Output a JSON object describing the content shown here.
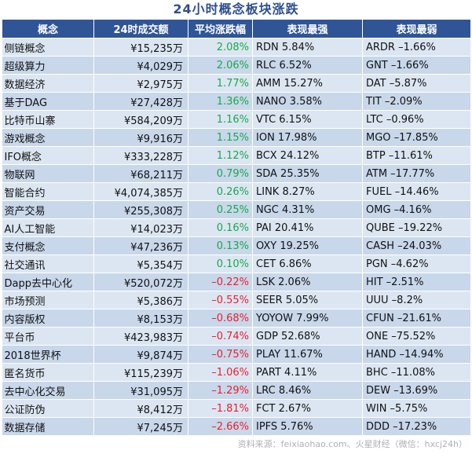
{
  "title": "24小时概念板块涨跌",
  "headers": [
    "概念",
    "24时成交额",
    "平均涨跌幅",
    "表现最强",
    "表现最弱"
  ],
  "colors": {
    "header_bg": "#2f5597",
    "title": "#2e4f8e",
    "row_light": "#dce6f2",
    "row_dark": "#c8d7ea",
    "up": "#1aa84a",
    "down": "#e8212b"
  },
  "rows": [
    {
      "concept": "侧链概念",
      "volume": "¥15,235万",
      "change": "2.08%",
      "direction": "up",
      "best": "RDN 5.84%",
      "worst": "ARDR –1.66%"
    },
    {
      "concept": "超级算力",
      "volume": "¥4,029万",
      "change": "2.06%",
      "direction": "up",
      "best": "RLC 6.52%",
      "worst": "GNT –1.66%"
    },
    {
      "concept": "数据经济",
      "volume": "¥2,975万",
      "change": "1.77%",
      "direction": "up",
      "best": "AMM 15.27%",
      "worst": "DAT –5.87%"
    },
    {
      "concept": "基于DAG",
      "volume": "¥27,428万",
      "change": "1.36%",
      "direction": "up",
      "best": "NANO 3.58%",
      "worst": "TIT –2.09%"
    },
    {
      "concept": "比特币山寨",
      "volume": "¥584,209万",
      "change": "1.16%",
      "direction": "up",
      "best": "VTC 6.15%",
      "worst": "LTC –0.96%"
    },
    {
      "concept": "游戏概念",
      "volume": "¥9,916万",
      "change": "1.15%",
      "direction": "up",
      "best": "ION 17.98%",
      "worst": "MGO –17.85%"
    },
    {
      "concept": "IFO概念",
      "volume": "¥333,228万",
      "change": "1.12%",
      "direction": "up",
      "best": "BCX 24.12%",
      "worst": "BTP –11.61%"
    },
    {
      "concept": "物联网",
      "volume": "¥68,211万",
      "change": "0.79%",
      "direction": "up",
      "best": "SDA 25.35%",
      "worst": "ATM –17.77%"
    },
    {
      "concept": "智能合约",
      "volume": "¥4,074,385万",
      "change": "0.26%",
      "direction": "up",
      "best": "LINK 8.27%",
      "worst": "FUEL –14.46%"
    },
    {
      "concept": "资产交易",
      "volume": "¥255,308万",
      "change": "0.25%",
      "direction": "up",
      "best": "NGC 4.31%",
      "worst": "OMG –4.16%"
    },
    {
      "concept": "AI人工智能",
      "volume": "¥14,023万",
      "change": "0.16%",
      "direction": "up",
      "best": "PAI 20.41%",
      "worst": "QUBE –19.22%"
    },
    {
      "concept": "支付概念",
      "volume": "¥47,236万",
      "change": "0.13%",
      "direction": "up",
      "best": "OXY 19.25%",
      "worst": "CASH –24.03%"
    },
    {
      "concept": "社交通讯",
      "volume": "¥5,354万",
      "change": "0.10%",
      "direction": "up",
      "best": "CET 6.86%",
      "worst": "PGN –4.62%"
    },
    {
      "concept": "Dapp去中心化",
      "volume": "¥520,072万",
      "change": "–0.22%",
      "direction": "down",
      "best": "LSK 2.06%",
      "worst": "HIT –2.51%"
    },
    {
      "concept": "市场预测",
      "volume": "¥5,386万",
      "change": "–0.55%",
      "direction": "down",
      "best": "SEER 5.05%",
      "worst": "UUU –8.2%"
    },
    {
      "concept": "内容版权",
      "volume": "¥8,153万",
      "change": "–0.68%",
      "direction": "down",
      "best": "YOYOW 7.99%",
      "worst": "CFUN –21.61%"
    },
    {
      "concept": "平台币",
      "volume": "¥423,983万",
      "change": "–0.74%",
      "direction": "down",
      "best": "GDP 52.68%",
      "worst": "ONE –75.52%"
    },
    {
      "concept": "2018世界杯",
      "volume": "¥9,874万",
      "change": "–0.75%",
      "direction": "down",
      "best": "PLAY 11.67%",
      "worst": "HAND –14.94%"
    },
    {
      "concept": "匿名货币",
      "volume": "¥115,239万",
      "change": "–1.06%",
      "direction": "down",
      "best": "PART 4.11%",
      "worst": "BHC –11.08%"
    },
    {
      "concept": "去中心化交易",
      "volume": "¥31,095万",
      "change": "–1.29%",
      "direction": "down",
      "best": "LRC 8.46%",
      "worst": "DEW –13.69%"
    },
    {
      "concept": "公证防伪",
      "volume": "¥8,412万",
      "change": "–1.81%",
      "direction": "down",
      "best": "FCT 2.67%",
      "worst": "WIN –5.75%"
    },
    {
      "concept": "数据存储",
      "volume": "¥7,245万",
      "change": "–2.66%",
      "direction": "down",
      "best": "IPFS 5.76%",
      "worst": "DDD –17.23%"
    }
  ],
  "source": "资料来源：feixiaohao.com、火星财经（微信：hxcj24h）"
}
